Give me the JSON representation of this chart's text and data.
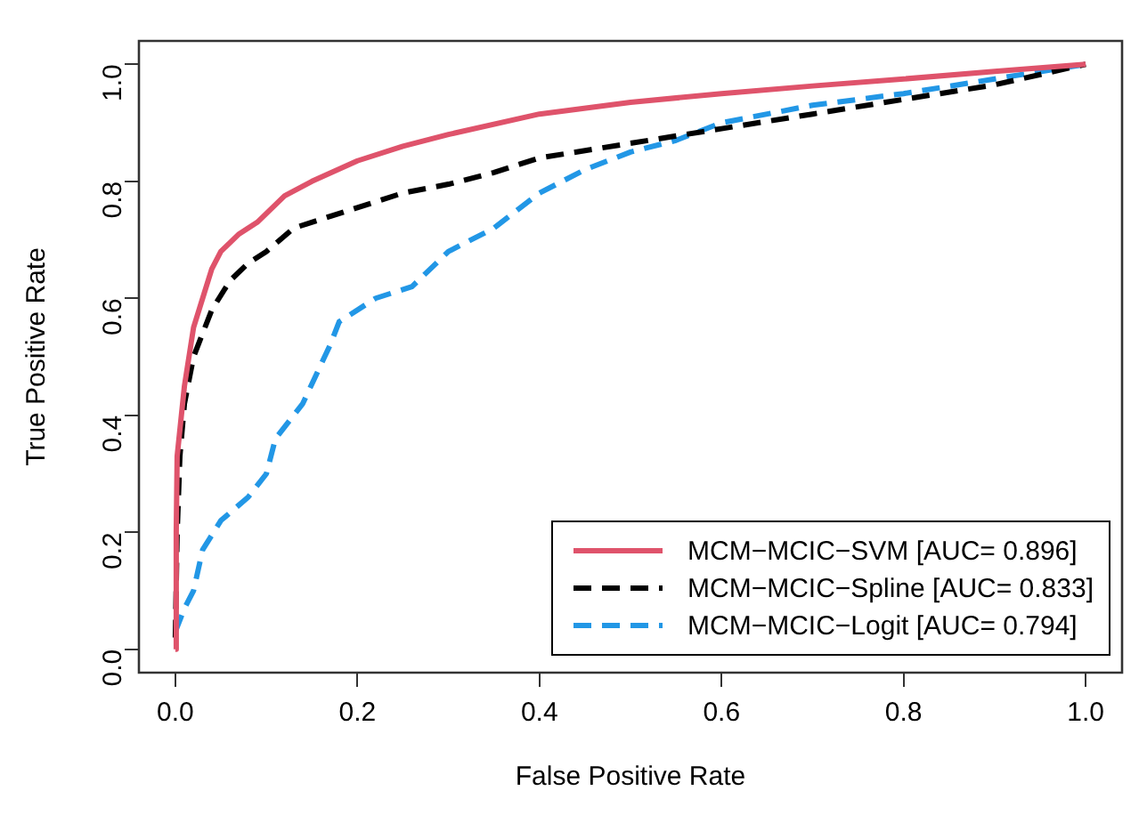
{
  "chart_data": {
    "type": "line",
    "xlabel": "False Positive Rate",
    "ylabel": "True Positive Rate",
    "xlim": [
      -0.04,
      1.04
    ],
    "ylim": [
      -0.04,
      1.04
    ],
    "xticks": [
      {
        "value": 0,
        "label": "0.0"
      },
      {
        "value": 0.2,
        "label": "0.2"
      },
      {
        "value": 0.4,
        "label": "0.4"
      },
      {
        "value": 0.6,
        "label": "0.6"
      },
      {
        "value": 0.8,
        "label": "0.8"
      },
      {
        "value": 1,
        "label": "1.0"
      }
    ],
    "yticks": [
      {
        "value": 0,
        "label": "0.0"
      },
      {
        "value": 0.2,
        "label": "0.2"
      },
      {
        "value": 0.4,
        "label": "0.4"
      },
      {
        "value": 0.6,
        "label": "0.6"
      },
      {
        "value": 0.8,
        "label": "0.8"
      },
      {
        "value": 1,
        "label": "1.0"
      }
    ],
    "grid": false,
    "legend": "bottom right",
    "marker": "none",
    "series": [
      {
        "name": "MCM−MCIC−SVM [AUC= 0.896]",
        "color": "#df536b",
        "line_style": "solid",
        "x": [
          0,
          0.001,
          0.002,
          0.01,
          0.02,
          0.03,
          0.04,
          0.05,
          0.07,
          0.09,
          0.12,
          0.15,
          0.2,
          0.25,
          0.3,
          0.4,
          0.5,
          0.6,
          0.7,
          0.8,
          0.9,
          1
        ],
        "values": [
          0,
          0.2,
          0.33,
          0.45,
          0.55,
          0.6,
          0.65,
          0.68,
          0.71,
          0.73,
          0.775,
          0.8,
          0.835,
          0.86,
          0.88,
          0.915,
          0.935,
          0.95,
          0.963,
          0.975,
          0.988,
          1
        ]
      },
      {
        "name": "MCM−MCIC−Spline [AUC= 0.833]",
        "color": "#000000",
        "line_style": "dashed",
        "x": [
          0,
          0.002,
          0.005,
          0.01,
          0.02,
          0.04,
          0.06,
          0.08,
          0.1,
          0.13,
          0.2,
          0.25,
          0.3,
          0.35,
          0.4,
          0.5,
          0.6,
          0.7,
          0.8,
          0.9,
          1
        ],
        "values": [
          0.02,
          0.2,
          0.33,
          0.42,
          0.5,
          0.58,
          0.63,
          0.66,
          0.68,
          0.72,
          0.755,
          0.78,
          0.795,
          0.815,
          0.84,
          0.865,
          0.89,
          0.915,
          0.94,
          0.965,
          1
        ]
      },
      {
        "name": "MCM−MCIC−Logit [AUC= 0.794]",
        "color": "#2297e6",
        "line_style": "dashed",
        "x": [
          0,
          0.01,
          0.02,
          0.03,
          0.05,
          0.08,
          0.1,
          0.11,
          0.14,
          0.17,
          0.18,
          0.22,
          0.26,
          0.3,
          0.35,
          0.4,
          0.45,
          0.5,
          0.55,
          0.6,
          0.7,
          0.8,
          0.9,
          1
        ],
        "values": [
          0.03,
          0.07,
          0.1,
          0.17,
          0.22,
          0.26,
          0.3,
          0.36,
          0.42,
          0.52,
          0.56,
          0.6,
          0.62,
          0.68,
          0.72,
          0.78,
          0.82,
          0.85,
          0.87,
          0.9,
          0.93,
          0.95,
          0.975,
          1
        ]
      }
    ]
  }
}
